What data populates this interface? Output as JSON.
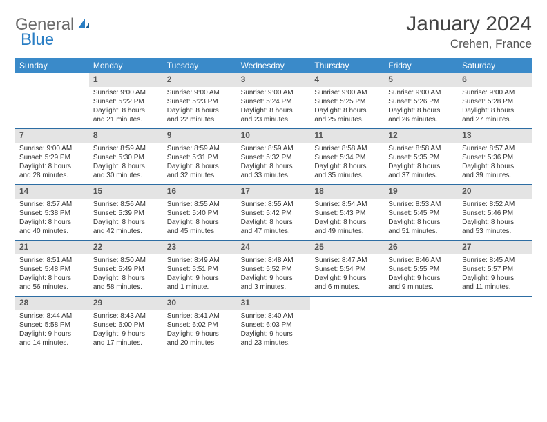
{
  "logo": {
    "text1": "General",
    "text2": "Blue"
  },
  "title": "January 2024",
  "location": "Crehen, France",
  "day_names": [
    "Sunday",
    "Monday",
    "Tuesday",
    "Wednesday",
    "Thursday",
    "Friday",
    "Saturday"
  ],
  "colors": {
    "header_bg": "#3a8ac9",
    "header_fg": "#ffffff",
    "daynum_bg": "#e4e4e4",
    "week_border": "#2d6da3",
    "text": "#333333",
    "title": "#444444"
  },
  "weeks": [
    [
      {
        "empty": true
      },
      {
        "n": "1",
        "sr": "Sunrise: 9:00 AM",
        "ss": "Sunset: 5:22 PM",
        "d1": "Daylight: 8 hours",
        "d2": "and 21 minutes."
      },
      {
        "n": "2",
        "sr": "Sunrise: 9:00 AM",
        "ss": "Sunset: 5:23 PM",
        "d1": "Daylight: 8 hours",
        "d2": "and 22 minutes."
      },
      {
        "n": "3",
        "sr": "Sunrise: 9:00 AM",
        "ss": "Sunset: 5:24 PM",
        "d1": "Daylight: 8 hours",
        "d2": "and 23 minutes."
      },
      {
        "n": "4",
        "sr": "Sunrise: 9:00 AM",
        "ss": "Sunset: 5:25 PM",
        "d1": "Daylight: 8 hours",
        "d2": "and 25 minutes."
      },
      {
        "n": "5",
        "sr": "Sunrise: 9:00 AM",
        "ss": "Sunset: 5:26 PM",
        "d1": "Daylight: 8 hours",
        "d2": "and 26 minutes."
      },
      {
        "n": "6",
        "sr": "Sunrise: 9:00 AM",
        "ss": "Sunset: 5:28 PM",
        "d1": "Daylight: 8 hours",
        "d2": "and 27 minutes."
      }
    ],
    [
      {
        "n": "7",
        "sr": "Sunrise: 9:00 AM",
        "ss": "Sunset: 5:29 PM",
        "d1": "Daylight: 8 hours",
        "d2": "and 28 minutes."
      },
      {
        "n": "8",
        "sr": "Sunrise: 8:59 AM",
        "ss": "Sunset: 5:30 PM",
        "d1": "Daylight: 8 hours",
        "d2": "and 30 minutes."
      },
      {
        "n": "9",
        "sr": "Sunrise: 8:59 AM",
        "ss": "Sunset: 5:31 PM",
        "d1": "Daylight: 8 hours",
        "d2": "and 32 minutes."
      },
      {
        "n": "10",
        "sr": "Sunrise: 8:59 AM",
        "ss": "Sunset: 5:32 PM",
        "d1": "Daylight: 8 hours",
        "d2": "and 33 minutes."
      },
      {
        "n": "11",
        "sr": "Sunrise: 8:58 AM",
        "ss": "Sunset: 5:34 PM",
        "d1": "Daylight: 8 hours",
        "d2": "and 35 minutes."
      },
      {
        "n": "12",
        "sr": "Sunrise: 8:58 AM",
        "ss": "Sunset: 5:35 PM",
        "d1": "Daylight: 8 hours",
        "d2": "and 37 minutes."
      },
      {
        "n": "13",
        "sr": "Sunrise: 8:57 AM",
        "ss": "Sunset: 5:36 PM",
        "d1": "Daylight: 8 hours",
        "d2": "and 39 minutes."
      }
    ],
    [
      {
        "n": "14",
        "sr": "Sunrise: 8:57 AM",
        "ss": "Sunset: 5:38 PM",
        "d1": "Daylight: 8 hours",
        "d2": "and 40 minutes."
      },
      {
        "n": "15",
        "sr": "Sunrise: 8:56 AM",
        "ss": "Sunset: 5:39 PM",
        "d1": "Daylight: 8 hours",
        "d2": "and 42 minutes."
      },
      {
        "n": "16",
        "sr": "Sunrise: 8:55 AM",
        "ss": "Sunset: 5:40 PM",
        "d1": "Daylight: 8 hours",
        "d2": "and 45 minutes."
      },
      {
        "n": "17",
        "sr": "Sunrise: 8:55 AM",
        "ss": "Sunset: 5:42 PM",
        "d1": "Daylight: 8 hours",
        "d2": "and 47 minutes."
      },
      {
        "n": "18",
        "sr": "Sunrise: 8:54 AM",
        "ss": "Sunset: 5:43 PM",
        "d1": "Daylight: 8 hours",
        "d2": "and 49 minutes."
      },
      {
        "n": "19",
        "sr": "Sunrise: 8:53 AM",
        "ss": "Sunset: 5:45 PM",
        "d1": "Daylight: 8 hours",
        "d2": "and 51 minutes."
      },
      {
        "n": "20",
        "sr": "Sunrise: 8:52 AM",
        "ss": "Sunset: 5:46 PM",
        "d1": "Daylight: 8 hours",
        "d2": "and 53 minutes."
      }
    ],
    [
      {
        "n": "21",
        "sr": "Sunrise: 8:51 AM",
        "ss": "Sunset: 5:48 PM",
        "d1": "Daylight: 8 hours",
        "d2": "and 56 minutes."
      },
      {
        "n": "22",
        "sr": "Sunrise: 8:50 AM",
        "ss": "Sunset: 5:49 PM",
        "d1": "Daylight: 8 hours",
        "d2": "and 58 minutes."
      },
      {
        "n": "23",
        "sr": "Sunrise: 8:49 AM",
        "ss": "Sunset: 5:51 PM",
        "d1": "Daylight: 9 hours",
        "d2": "and 1 minute."
      },
      {
        "n": "24",
        "sr": "Sunrise: 8:48 AM",
        "ss": "Sunset: 5:52 PM",
        "d1": "Daylight: 9 hours",
        "d2": "and 3 minutes."
      },
      {
        "n": "25",
        "sr": "Sunrise: 8:47 AM",
        "ss": "Sunset: 5:54 PM",
        "d1": "Daylight: 9 hours",
        "d2": "and 6 minutes."
      },
      {
        "n": "26",
        "sr": "Sunrise: 8:46 AM",
        "ss": "Sunset: 5:55 PM",
        "d1": "Daylight: 9 hours",
        "d2": "and 9 minutes."
      },
      {
        "n": "27",
        "sr": "Sunrise: 8:45 AM",
        "ss": "Sunset: 5:57 PM",
        "d1": "Daylight: 9 hours",
        "d2": "and 11 minutes."
      }
    ],
    [
      {
        "n": "28",
        "sr": "Sunrise: 8:44 AM",
        "ss": "Sunset: 5:58 PM",
        "d1": "Daylight: 9 hours",
        "d2": "and 14 minutes."
      },
      {
        "n": "29",
        "sr": "Sunrise: 8:43 AM",
        "ss": "Sunset: 6:00 PM",
        "d1": "Daylight: 9 hours",
        "d2": "and 17 minutes."
      },
      {
        "n": "30",
        "sr": "Sunrise: 8:41 AM",
        "ss": "Sunset: 6:02 PM",
        "d1": "Daylight: 9 hours",
        "d2": "and 20 minutes."
      },
      {
        "n": "31",
        "sr": "Sunrise: 8:40 AM",
        "ss": "Sunset: 6:03 PM",
        "d1": "Daylight: 9 hours",
        "d2": "and 23 minutes."
      },
      {
        "empty": true
      },
      {
        "empty": true
      },
      {
        "empty": true
      }
    ]
  ]
}
